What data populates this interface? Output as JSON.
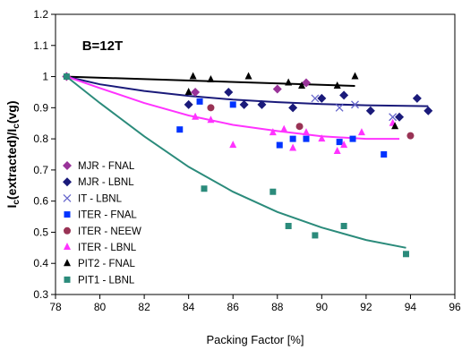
{
  "chart_data": {
    "type": "scatter",
    "annotation": "B=12T",
    "xlabel": "Packing Factor [%]",
    "ylabel_parts": [
      "I",
      "c",
      "(extracted)/I",
      "c",
      "(vg)"
    ],
    "xlim": [
      78,
      96
    ],
    "ylim": [
      0.3,
      1.2
    ],
    "x_ticks": [
      "78",
      "80",
      "82",
      "84",
      "86",
      "88",
      "90",
      "92",
      "94",
      "96"
    ],
    "y_ticks": [
      "0.3",
      "0.4",
      "0.5",
      "0.6",
      "0.7",
      "0.8",
      "0.9",
      "1",
      "1.1",
      "1.2"
    ],
    "grid": false,
    "legend_position": "bottom-left",
    "series": [
      {
        "name": "MJR - FNAL",
        "marker": "diamond",
        "color": "#993399",
        "points": [
          [
            78.5,
            1.0
          ],
          [
            84.3,
            0.95
          ],
          [
            88.0,
            0.96
          ],
          [
            89.3,
            0.98
          ]
        ]
      },
      {
        "name": "MJR - LBNL",
        "marker": "diamond",
        "color": "#1a1a7a",
        "points": [
          [
            84.0,
            0.91
          ],
          [
            85.8,
            0.95
          ],
          [
            86.5,
            0.91
          ],
          [
            87.3,
            0.91
          ],
          [
            88.7,
            0.9
          ],
          [
            90.0,
            0.93
          ],
          [
            91.0,
            0.94
          ],
          [
            92.2,
            0.89
          ],
          [
            93.5,
            0.87
          ],
          [
            94.3,
            0.93
          ],
          [
            94.8,
            0.89
          ]
        ]
      },
      {
        "name": "IT - LBNL",
        "marker": "x",
        "color": "#6666cc",
        "points": [
          [
            89.7,
            0.93
          ],
          [
            90.8,
            0.9
          ],
          [
            91.5,
            0.91
          ],
          [
            93.2,
            0.87
          ]
        ]
      },
      {
        "name": "ITER - FNAL",
        "marker": "square",
        "color": "#0033ff",
        "points": [
          [
            83.6,
            0.83
          ],
          [
            84.5,
            0.92
          ],
          [
            86.0,
            0.91
          ],
          [
            88.1,
            0.78
          ],
          [
            88.7,
            0.8
          ],
          [
            89.3,
            0.8
          ],
          [
            90.8,
            0.79
          ],
          [
            91.4,
            0.8
          ],
          [
            92.8,
            0.75
          ]
        ]
      },
      {
        "name": "ITER - NEEW",
        "marker": "circle",
        "color": "#993355",
        "points": [
          [
            85.0,
            0.9
          ],
          [
            89.0,
            0.84
          ],
          [
            94.0,
            0.81
          ]
        ]
      },
      {
        "name": "ITER - LBNL",
        "marker": "triangle",
        "color": "#ff33ff",
        "points": [
          [
            84.3,
            0.87
          ],
          [
            85.0,
            0.86
          ],
          [
            86.0,
            0.78
          ],
          [
            87.8,
            0.82
          ],
          [
            88.3,
            0.83
          ],
          [
            88.7,
            0.77
          ],
          [
            89.3,
            0.82
          ],
          [
            90.0,
            0.8
          ],
          [
            90.7,
            0.76
          ],
          [
            91.0,
            0.78
          ],
          [
            91.8,
            0.82
          ],
          [
            93.2,
            0.85
          ]
        ]
      },
      {
        "name": "PIT2 - FNAL",
        "marker": "triangle",
        "color": "#000000",
        "points": [
          [
            84.2,
            1.0
          ],
          [
            85.0,
            0.99
          ],
          [
            86.7,
            1.0
          ],
          [
            88.5,
            0.98
          ],
          [
            89.1,
            0.97
          ],
          [
            90.7,
            0.97
          ],
          [
            91.5,
            1.0
          ],
          [
            93.3,
            0.84
          ],
          [
            84.0,
            0.95
          ]
        ]
      },
      {
        "name": "PIT1 - LBNL",
        "marker": "square",
        "color": "#2b8b7b",
        "points": [
          [
            78.5,
            1.0
          ],
          [
            84.7,
            0.64
          ],
          [
            87.8,
            0.63
          ],
          [
            88.5,
            0.52
          ],
          [
            89.7,
            0.49
          ],
          [
            91.0,
            0.52
          ],
          [
            93.8,
            0.43
          ]
        ]
      }
    ],
    "trend_lines": [
      {
        "series": "PIT2 - FNAL",
        "color": "#000000",
        "points": [
          [
            78.5,
            1.0
          ],
          [
            91.5,
            0.97
          ]
        ]
      },
      {
        "series": "MJR - LBNL",
        "color": "#1a1a7a",
        "points": [
          [
            78.5,
            1.0
          ],
          [
            80,
            0.975
          ],
          [
            82,
            0.954
          ],
          [
            84,
            0.938
          ],
          [
            86,
            0.926
          ],
          [
            88,
            0.918
          ],
          [
            90,
            0.912
          ],
          [
            92,
            0.908
          ],
          [
            94.8,
            0.905
          ]
        ]
      },
      {
        "series": "ITER - LBNL",
        "color": "#ff33ff",
        "points": [
          [
            78.5,
            1.0
          ],
          [
            80,
            0.963
          ],
          [
            82,
            0.915
          ],
          [
            84,
            0.875
          ],
          [
            86,
            0.845
          ],
          [
            88,
            0.825
          ],
          [
            90,
            0.808
          ],
          [
            92,
            0.8
          ],
          [
            93.5,
            0.8
          ]
        ]
      },
      {
        "series": "PIT1 - LBNL",
        "color": "#2b8b7b",
        "points": [
          [
            78.5,
            1.0
          ],
          [
            80,
            0.915
          ],
          [
            82,
            0.808
          ],
          [
            84,
            0.71
          ],
          [
            86,
            0.63
          ],
          [
            88,
            0.565
          ],
          [
            90,
            0.515
          ],
          [
            92,
            0.475
          ],
          [
            93.8,
            0.45
          ]
        ]
      }
    ]
  }
}
